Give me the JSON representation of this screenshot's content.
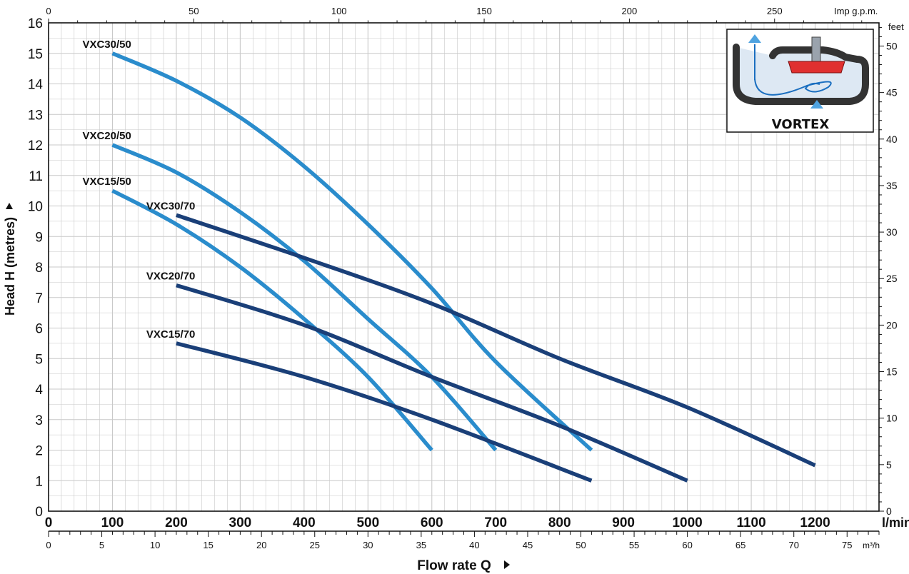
{
  "chart_data": {
    "type": "line",
    "ylabel": "Head H  (metres)",
    "xlabel": "Flow rate  Q",
    "units": {
      "x_primary": "l/min",
      "x_secondary": "m³/h",
      "x_top": "Imp g.p.m.",
      "y_right": "feet"
    },
    "x_range_lmin": [
      0,
      1300
    ],
    "y_range_m": [
      0,
      16
    ],
    "x_ticks_lmin": [
      0,
      100,
      200,
      300,
      400,
      500,
      600,
      700,
      800,
      900,
      1000,
      1100,
      1200
    ],
    "y_ticks_m": [
      0,
      1,
      2,
      3,
      4,
      5,
      6,
      7,
      8,
      9,
      10,
      11,
      12,
      13,
      14,
      15,
      16
    ],
    "x_ticks_m3h": [
      0,
      5,
      10,
      15,
      20,
      25,
      30,
      35,
      40,
      45,
      50,
      55,
      60,
      65,
      70,
      75
    ],
    "x_ticks_gpm": [
      0,
      50,
      100,
      150,
      200,
      250
    ],
    "y_ticks_feet": [
      0,
      5,
      10,
      15,
      20,
      25,
      30,
      35,
      40,
      45,
      50
    ],
    "grid": true,
    "colors": {
      "light": "#2a8ccc",
      "dark": "#1a3f78",
      "grid": "#c9c9c9"
    },
    "series": [
      {
        "name": "VXC30/50",
        "color": "light",
        "x": [
          100,
          200,
          300,
          400,
          500,
          600,
          700,
          850
        ],
        "y": [
          15.0,
          14.1,
          12.9,
          11.3,
          9.4,
          7.3,
          4.9,
          2.0
        ]
      },
      {
        "name": "VXC20/50",
        "color": "light",
        "x": [
          100,
          200,
          300,
          400,
          500,
          600,
          700
        ],
        "y": [
          12.0,
          11.1,
          9.8,
          8.2,
          6.3,
          4.4,
          2.0
        ]
      },
      {
        "name": "VXC15/50",
        "color": "light",
        "x": [
          100,
          200,
          300,
          400,
          500,
          600
        ],
        "y": [
          10.5,
          9.4,
          8.0,
          6.3,
          4.4,
          2.0
        ]
      },
      {
        "name": "VXC30/70",
        "color": "dark",
        "x": [
          200,
          400,
          600,
          800,
          1000,
          1200
        ],
        "y": [
          9.7,
          8.3,
          6.8,
          5.0,
          3.4,
          1.5
        ]
      },
      {
        "name": "VXC20/70",
        "color": "dark",
        "x": [
          200,
          400,
          600,
          800,
          1000
        ],
        "y": [
          7.4,
          6.1,
          4.4,
          2.8,
          1.0
        ]
      },
      {
        "name": "VXC15/70",
        "color": "dark",
        "x": [
          200,
          400,
          600,
          850
        ],
        "y": [
          5.5,
          4.4,
          3.0,
          1.0
        ]
      }
    ],
    "inset": {
      "title": "VORTEX"
    }
  }
}
